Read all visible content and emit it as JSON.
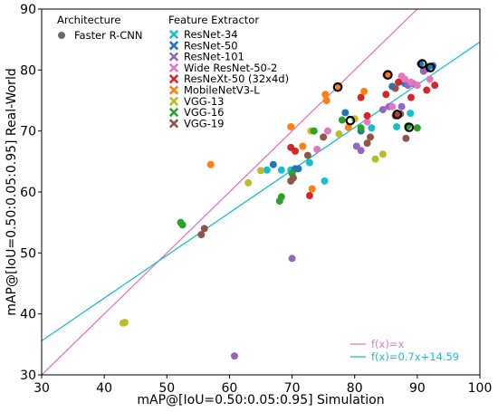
{
  "chart_data": {
    "type": "scatter",
    "xlabel": "mAP@[IoU=0.50:0.05:0.95] Simulation",
    "ylabel": "mAP@[IoU=0.50:0.05:0.95] Real-World",
    "xlim": [
      30,
      100
    ],
    "ylim": [
      30,
      90
    ],
    "xticks": [
      "30",
      "40",
      "50",
      "60",
      "70",
      "80",
      "90",
      "100"
    ],
    "yticks": [
      "30",
      "40",
      "50",
      "60",
      "70",
      "80",
      "90"
    ],
    "grid": false,
    "legend_architecture": {
      "title": "Architecture",
      "entries": [
        {
          "name": "Faster R-CNN",
          "color": "#6b6b6b"
        }
      ]
    },
    "legend_feature": {
      "title": "Feature Extractor",
      "entries": [
        {
          "name": "ResNet-34",
          "color": "#17becf"
        },
        {
          "name": "ResNet-50",
          "color": "#1f77b4"
        },
        {
          "name": "ResNet-101",
          "color": "#9467bd"
        },
        {
          "name": "Wide ResNet-50-2",
          "color": "#e377c2"
        },
        {
          "name": "ResNeXt-50 (32x4d)",
          "color": "#d62728"
        },
        {
          "name": "MobileNetV3-L",
          "color": "#ff7f0e"
        },
        {
          "name": "VGG-13",
          "color": "#bcbd22"
        },
        {
          "name": "VGG-16",
          "color": "#2ca02c"
        },
        {
          "name": "VGG-19",
          "color": "#8c564b"
        }
      ]
    },
    "lines": [
      {
        "name": "f(x)=x",
        "slope": 1.0,
        "intercept": 0.0,
        "color": "#e377c2"
      },
      {
        "name": "f(x)=0.7x+14.59",
        "slope": 0.7,
        "intercept": 14.59,
        "color": "#17becf"
      }
    ],
    "series": [
      {
        "name": "ResNet-34",
        "color": "#17becf",
        "points": [
          [
            66.0,
            63.6
          ],
          [
            68.3,
            63.6
          ],
          [
            69.8,
            63.6
          ],
          [
            72.8,
            64.8
          ],
          [
            75.2,
            61.8
          ],
          [
            82.7,
            70.5
          ],
          [
            86.7,
            70.7
          ],
          [
            88.9,
            72.9
          ],
          [
            91.0,
            80.0
          ],
          [
            91.8,
            80.5
          ]
        ]
      },
      {
        "name": "ResNet-50",
        "color": "#1f77b4",
        "points": [
          [
            67.0,
            64.5
          ],
          [
            70.5,
            63.8
          ],
          [
            71.0,
            63.8
          ],
          [
            78.5,
            73.0
          ],
          [
            81.0,
            70.0
          ],
          [
            86.0,
            77.3
          ],
          [
            88.0,
            77.8
          ],
          [
            90.5,
            81.0
          ],
          [
            91.5,
            80.2
          ],
          [
            92.5,
            80.7
          ]
        ]
      },
      {
        "name": "ResNet-101",
        "color": "#9467bd",
        "points": [
          [
            60.8,
            33.1
          ],
          [
            70.0,
            49.1
          ],
          [
            80.3,
            67.5
          ],
          [
            81.0,
            66.8
          ],
          [
            84.5,
            73.5
          ],
          [
            85.5,
            74.0
          ],
          [
            87.5,
            74.0
          ],
          [
            88.5,
            77.5
          ],
          [
            89.3,
            77.8
          ],
          [
            91.0,
            79.8
          ]
        ]
      },
      {
        "name": "Wide ResNet-50-2",
        "color": "#e377c2",
        "points": [
          [
            74.0,
            67.0
          ],
          [
            75.7,
            70.0
          ],
          [
            82.0,
            71.5
          ],
          [
            85.0,
            79.2
          ],
          [
            86.0,
            74.0
          ],
          [
            87.5,
            79.0
          ],
          [
            88.0,
            78.5
          ],
          [
            89.0,
            78.0
          ],
          [
            90.0,
            77.5
          ],
          [
            92.0,
            78.5
          ]
        ]
      },
      {
        "name": "ResNeXt-50 (32x4d)",
        "color": "#d62728",
        "points": [
          [
            69.8,
            67.3
          ],
          [
            70.5,
            66.7
          ],
          [
            72.8,
            59.4
          ],
          [
            81.0,
            75.5
          ],
          [
            82.0,
            72.5
          ],
          [
            85.0,
            76.0
          ],
          [
            86.5,
            72.5
          ],
          [
            87.0,
            78.0
          ],
          [
            89.0,
            75.5
          ],
          [
            91.5,
            76.7
          ],
          [
            92.8,
            77.5
          ]
        ]
      },
      {
        "name": "MobileNetV3-L",
        "color": "#ff7f0e",
        "points": [
          [
            57.0,
            64.5
          ],
          [
            69.8,
            70.7
          ],
          [
            71.7,
            67.5
          ],
          [
            73.2,
            60.5
          ],
          [
            75.3,
            76.0
          ],
          [
            75.5,
            75.0
          ],
          [
            77.5,
            77.3
          ],
          [
            79.0,
            70.6
          ],
          [
            81.5,
            76.5
          ],
          [
            85.3,
            79.2
          ]
        ]
      },
      {
        "name": "VGG-13",
        "color": "#bcbd22",
        "points": [
          [
            43.0,
            38.5
          ],
          [
            43.3,
            38.6
          ],
          [
            63.0,
            61.5
          ],
          [
            65.0,
            63.5
          ],
          [
            73.0,
            70.0
          ],
          [
            77.5,
            69.5
          ],
          [
            80.0,
            72.0
          ],
          [
            83.3,
            65.4
          ],
          [
            84.5,
            66.2
          ]
        ]
      },
      {
        "name": "VGG-16",
        "color": "#2ca02c",
        "points": [
          [
            52.2,
            55.0
          ],
          [
            52.5,
            54.6
          ],
          [
            68.0,
            58.5
          ],
          [
            68.3,
            59.2
          ],
          [
            70.0,
            63.0
          ],
          [
            73.5,
            70.0
          ],
          [
            78.0,
            71.8
          ],
          [
            81.0,
            70.5
          ],
          [
            88.5,
            70.8
          ],
          [
            90.0,
            70.5
          ]
        ]
      },
      {
        "name": "VGG-19",
        "color": "#8c564b",
        "points": [
          [
            55.5,
            53.0
          ],
          [
            56.0,
            54.0
          ],
          [
            69.8,
            61.8
          ],
          [
            70.2,
            62.3
          ],
          [
            72.5,
            66.0
          ],
          [
            75.0,
            69.0
          ],
          [
            82.0,
            68.0
          ],
          [
            82.5,
            69.0
          ],
          [
            86.5,
            77.0
          ],
          [
            87.3,
            72.8
          ],
          [
            88.2,
            68.8
          ]
        ]
      }
    ],
    "highlighted": [
      [
        77.3,
        77.2
      ],
      [
        79.3,
        71.7
      ],
      [
        85.3,
        79.2
      ],
      [
        86.8,
        72.7
      ],
      [
        88.7,
        70.6
      ],
      [
        90.8,
        81.0
      ],
      [
        92.1,
        80.4
      ]
    ]
  }
}
